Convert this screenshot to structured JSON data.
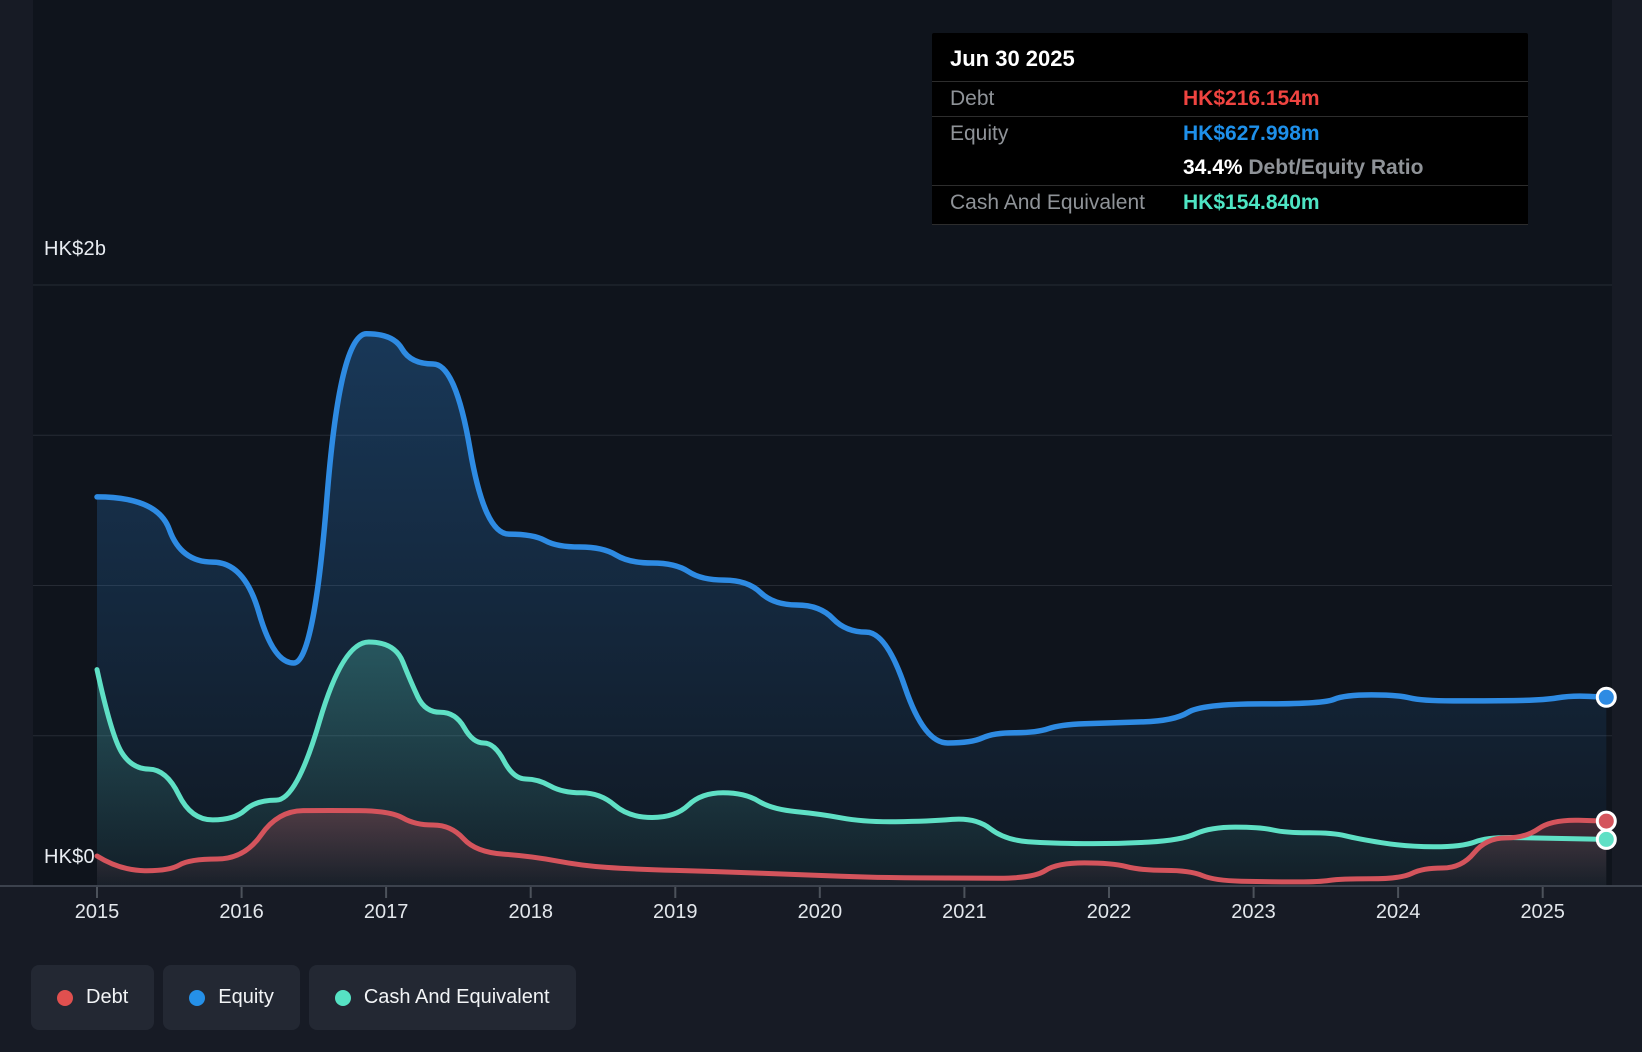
{
  "axis": {
    "y_top_label": "HK$2b",
    "y_zero_label": "HK$0",
    "x_ticks": [
      "2015",
      "2016",
      "2017",
      "2018",
      "2019",
      "2020",
      "2021",
      "2022",
      "2023",
      "2024",
      "2025"
    ]
  },
  "tooltip": {
    "date": "Jun 30 2025",
    "debt_label": "Debt",
    "debt_value": "HK$216.154m",
    "equity_label": "Equity",
    "equity_value": "HK$627.998m",
    "ratio_value": "34.4%",
    "ratio_label": "Debt/Equity Ratio",
    "cash_label": "Cash And Equivalent",
    "cash_value": "HK$154.840m"
  },
  "legend": [
    {
      "id": "debt",
      "label": "Debt",
      "color": "#e0504f"
    },
    {
      "id": "equity",
      "label": "Equity",
      "color": "#2590e8"
    },
    {
      "id": "cash",
      "label": "Cash And Equivalent",
      "color": "#56e2c4"
    }
  ],
  "colors": {
    "debt_line": "#d4545c",
    "equity_line": "#2e8be3",
    "cash_line": "#5fe0c5",
    "debt_value_text": "#ef4440",
    "equity_value_text": "#1e90ea",
    "cash_value_text": "#4ee5c4",
    "grid": "#262b34",
    "axis": "#3c424d",
    "tick": "#4c525b",
    "plot_bg": "#0f141c"
  },
  "chart_data": {
    "type": "area",
    "title": "Debt to Equity history (HK$, billions)",
    "x_unit": "year",
    "x_range": [
      2015.0,
      2025.44
    ],
    "ylim": [
      0,
      2
    ],
    "y_gridlines_b": [
      0.5,
      1.0,
      1.5,
      2.0
    ],
    "grid": true,
    "legend_position": "bottom-left",
    "latest_point": {
      "date": "Jun 30 2025",
      "debt_b": 0.216154,
      "equity_b": 0.627998,
      "cash_b": 0.15484,
      "debt_equity_ratio_pct": 34.4
    },
    "series": [
      {
        "name": "Equity",
        "color": "#2e8be3",
        "points": [
          [
            2015.0,
            1.295
          ],
          [
            2015.42,
            1.295
          ],
          [
            2015.58,
            1.078
          ],
          [
            2016.02,
            1.078
          ],
          [
            2016.22,
            0.742
          ],
          [
            2016.5,
            0.742
          ],
          [
            2016.68,
            1.838
          ],
          [
            2017.05,
            1.838
          ],
          [
            2017.17,
            1.737
          ],
          [
            2017.48,
            1.737
          ],
          [
            2017.68,
            1.171
          ],
          [
            2018.02,
            1.171
          ],
          [
            2018.18,
            1.128
          ],
          [
            2018.5,
            1.128
          ],
          [
            2018.68,
            1.075
          ],
          [
            2019.0,
            1.075
          ],
          [
            2019.18,
            1.018
          ],
          [
            2019.5,
            1.018
          ],
          [
            2019.68,
            0.935
          ],
          [
            2020.0,
            0.935
          ],
          [
            2020.18,
            0.845
          ],
          [
            2020.46,
            0.845
          ],
          [
            2020.72,
            0.476
          ],
          [
            2021.05,
            0.476
          ],
          [
            2021.2,
            0.51
          ],
          [
            2021.5,
            0.51
          ],
          [
            2021.66,
            0.537
          ],
          [
            2022.0,
            0.543
          ],
          [
            2022.45,
            0.549
          ],
          [
            2022.64,
            0.606
          ],
          [
            2023.48,
            0.606
          ],
          [
            2023.63,
            0.636
          ],
          [
            2024.0,
            0.636
          ],
          [
            2024.16,
            0.616
          ],
          [
            2024.6,
            0.616
          ],
          [
            2025.0,
            0.618
          ],
          [
            2025.2,
            0.634
          ],
          [
            2025.44,
            0.628
          ]
        ]
      },
      {
        "name": "Cash And Equivalent",
        "color": "#5fe0c5",
        "points": [
          [
            2015.0,
            0.72
          ],
          [
            2015.1,
            0.5
          ],
          [
            2015.24,
            0.39
          ],
          [
            2015.48,
            0.388
          ],
          [
            2015.65,
            0.22
          ],
          [
            2015.95,
            0.22
          ],
          [
            2016.1,
            0.286
          ],
          [
            2016.38,
            0.286
          ],
          [
            2016.7,
            0.812
          ],
          [
            2017.06,
            0.812
          ],
          [
            2017.17,
            0.68
          ],
          [
            2017.27,
            0.578
          ],
          [
            2017.48,
            0.578
          ],
          [
            2017.6,
            0.476
          ],
          [
            2017.75,
            0.476
          ],
          [
            2017.88,
            0.356
          ],
          [
            2018.05,
            0.356
          ],
          [
            2018.22,
            0.31
          ],
          [
            2018.48,
            0.31
          ],
          [
            2018.68,
            0.228
          ],
          [
            2019.0,
            0.228
          ],
          [
            2019.18,
            0.31
          ],
          [
            2019.48,
            0.31
          ],
          [
            2019.67,
            0.255
          ],
          [
            2020.0,
            0.24
          ],
          [
            2020.3,
            0.213
          ],
          [
            2020.75,
            0.215
          ],
          [
            2021.08,
            0.228
          ],
          [
            2021.28,
            0.153
          ],
          [
            2021.6,
            0.142
          ],
          [
            2022.05,
            0.14
          ],
          [
            2022.5,
            0.152
          ],
          [
            2022.7,
            0.196
          ],
          [
            2023.05,
            0.196
          ],
          [
            2023.22,
            0.177
          ],
          [
            2023.55,
            0.177
          ],
          [
            2023.72,
            0.157
          ],
          [
            2024.05,
            0.131
          ],
          [
            2024.44,
            0.13
          ],
          [
            2024.62,
            0.163
          ],
          [
            2025.0,
            0.159
          ],
          [
            2025.44,
            0.155
          ]
        ]
      },
      {
        "name": "Debt",
        "color": "#d4545c",
        "points": [
          [
            2015.0,
            0.1
          ],
          [
            2015.16,
            0.052
          ],
          [
            2015.5,
            0.05
          ],
          [
            2015.64,
            0.09
          ],
          [
            2016.02,
            0.09
          ],
          [
            2016.25,
            0.25
          ],
          [
            2016.6,
            0.252
          ],
          [
            2017.03,
            0.25
          ],
          [
            2017.2,
            0.203
          ],
          [
            2017.45,
            0.203
          ],
          [
            2017.62,
            0.112
          ],
          [
            2018.0,
            0.1
          ],
          [
            2018.35,
            0.068
          ],
          [
            2018.7,
            0.056
          ],
          [
            2019.3,
            0.048
          ],
          [
            2019.9,
            0.037
          ],
          [
            2020.4,
            0.028
          ],
          [
            2021.0,
            0.026
          ],
          [
            2021.48,
            0.026
          ],
          [
            2021.64,
            0.077
          ],
          [
            2022.02,
            0.077
          ],
          [
            2022.22,
            0.052
          ],
          [
            2022.56,
            0.052
          ],
          [
            2022.73,
            0.018
          ],
          [
            2023.1,
            0.014
          ],
          [
            2023.45,
            0.013
          ],
          [
            2023.6,
            0.024
          ],
          [
            2024.02,
            0.024
          ],
          [
            2024.17,
            0.06
          ],
          [
            2024.44,
            0.06
          ],
          [
            2024.61,
            0.16
          ],
          [
            2024.88,
            0.16
          ],
          [
            2025.06,
            0.221
          ],
          [
            2025.44,
            0.216
          ]
        ]
      }
    ]
  }
}
